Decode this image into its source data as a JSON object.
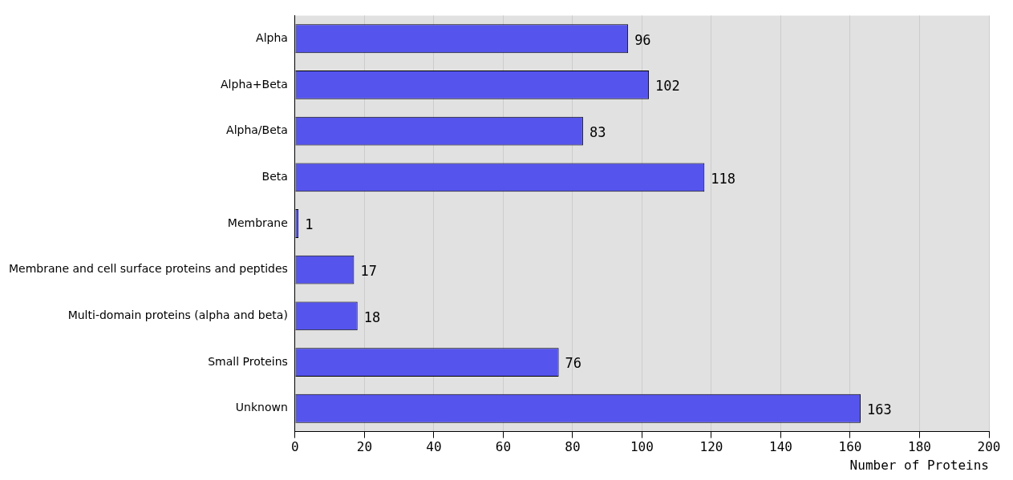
{
  "chart_data": {
    "type": "bar",
    "orientation": "horizontal",
    "xlabel": "Number of Proteins",
    "categories": [
      "Alpha",
      "Alpha+Beta",
      "Alpha/Beta",
      "Beta",
      "Membrane",
      "Membrane and cell surface proteins and peptides",
      "Multi-domain proteins (alpha and beta)",
      "Small Proteins",
      "Unknown"
    ],
    "values": [
      96,
      102,
      83,
      118,
      1,
      17,
      18,
      76,
      163
    ],
    "color": "#5555ee",
    "xlim": [
      0,
      200
    ],
    "xticks": [
      0,
      20,
      40,
      60,
      80,
      100,
      120,
      140,
      160,
      180,
      200
    ],
    "grid": "x",
    "data_labels": true
  }
}
